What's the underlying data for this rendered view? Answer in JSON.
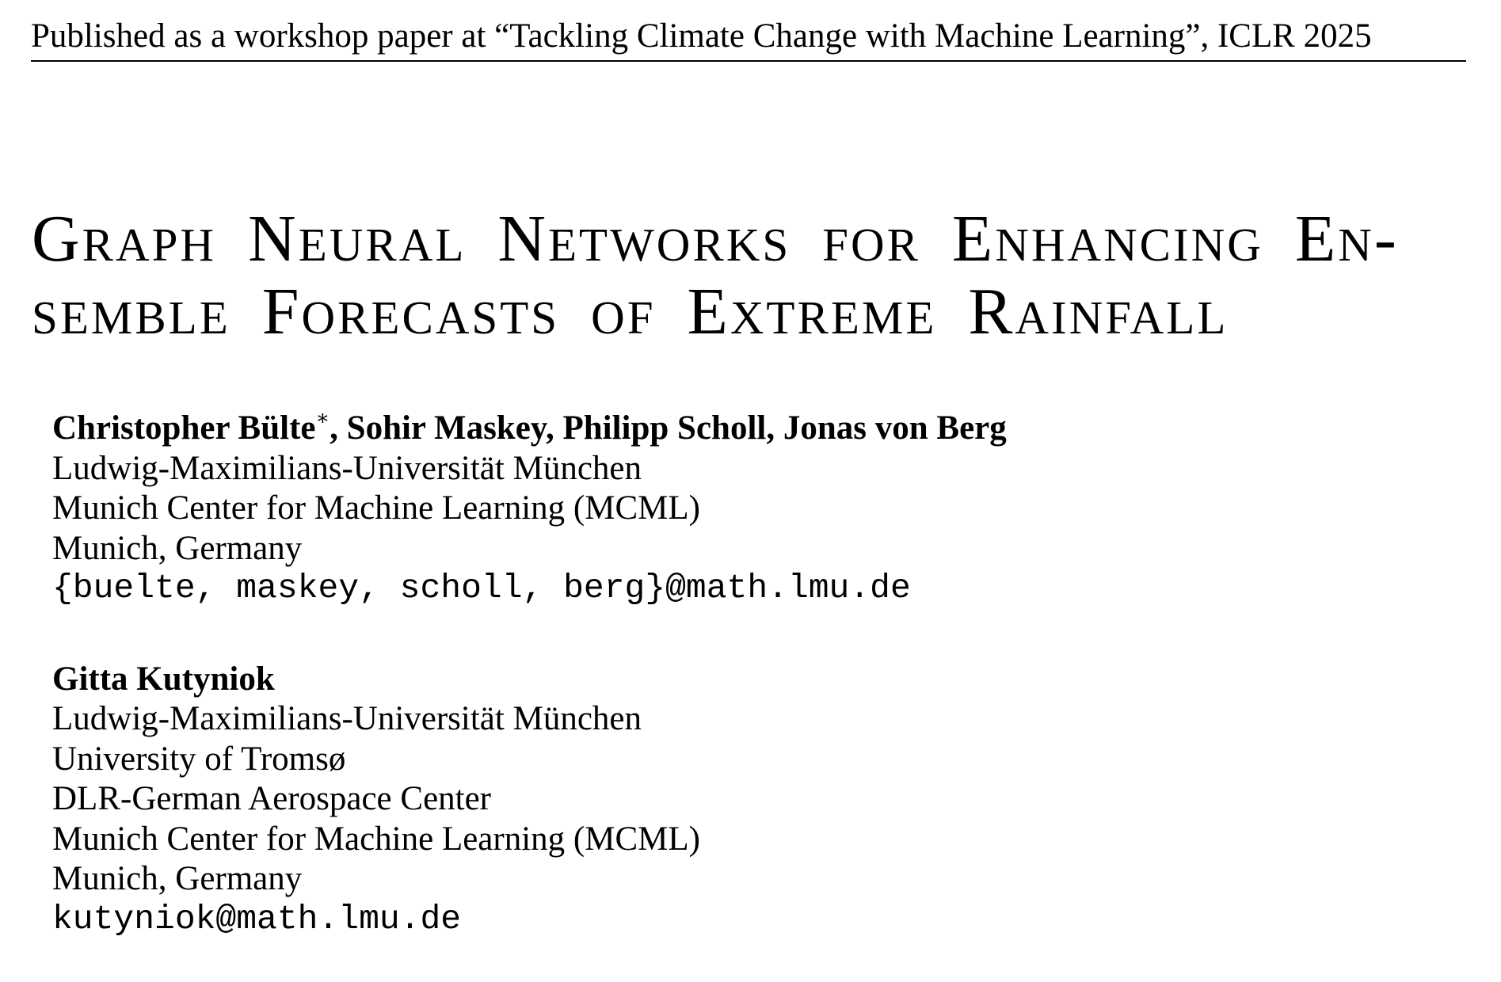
{
  "header": {
    "venue_line": "Published as a workshop paper at “Tackling Climate Change with Machine Learning”, ICLR 2025"
  },
  "paper": {
    "title_line1": "Graph Neural Networks for Enhancing En-",
    "title_line2": "semble Forecasts of Extreme Rainfall"
  },
  "author_blocks": [
    {
      "names": "Christopher Bülte",
      "star": "∗",
      "names_rest": ", Sohir Maskey, Philipp Scholl, Jonas von Berg",
      "affiliations": [
        "Ludwig-Maximilians-Universität München",
        "Munich Center for Machine Learning (MCML)",
        "Munich, Germany"
      ],
      "email": "{buelte, maskey, scholl, berg}@math.lmu.de"
    },
    {
      "names": "Gitta Kutyniok",
      "affiliations": [
        "Ludwig-Maximilians-Universität München",
        "University of Tromsø",
        "DLR-German Aerospace Center",
        "Munich Center for Machine Learning (MCML)",
        "Munich, Germany"
      ],
      "email": "kutyniok@math.lmu.de"
    }
  ]
}
